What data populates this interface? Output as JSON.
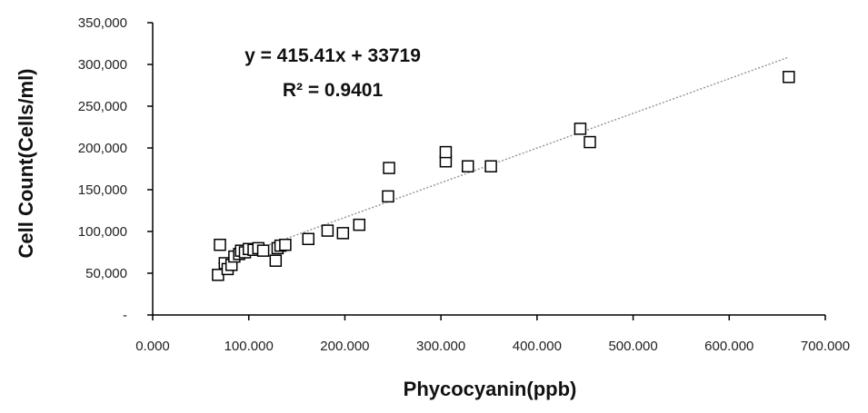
{
  "chart_data": {
    "type": "scatter",
    "title": "",
    "xlabel": "Phycocyanin(ppb)",
    "ylabel": "Cell Count(Cells/ml)",
    "xlim": [
      0,
      700
    ],
    "ylim": [
      0,
      350000
    ],
    "x_ticks": [
      0,
      100,
      200,
      300,
      400,
      500,
      600,
      700
    ],
    "x_tick_labels": [
      "0.000",
      "100.000",
      "200.000",
      "300.000",
      "400.000",
      "500.000",
      "600.000",
      "700.000"
    ],
    "y_ticks": [
      0,
      50000,
      100000,
      150000,
      200000,
      250000,
      300000,
      350000
    ],
    "y_tick_labels": [
      "-",
      "50,000",
      "100,000",
      "150,000",
      "200,000",
      "250,000",
      "300,000",
      "350,000"
    ],
    "grid": false,
    "legend": null,
    "series": [
      {
        "name": "Cell Count",
        "marker": "open-square",
        "points": [
          [
            68,
            48000
          ],
          [
            70,
            84000
          ],
          [
            75,
            62000
          ],
          [
            78,
            55000
          ],
          [
            82,
            60000
          ],
          [
            85,
            70000
          ],
          [
            90,
            73000
          ],
          [
            92,
            77000
          ],
          [
            96,
            75000
          ],
          [
            100,
            79000
          ],
          [
            105,
            78000
          ],
          [
            110,
            80000
          ],
          [
            115,
            77000
          ],
          [
            128,
            65000
          ],
          [
            130,
            80000
          ],
          [
            133,
            83000
          ],
          [
            138,
            84000
          ],
          [
            162,
            91000
          ],
          [
            182,
            101000
          ],
          [
            198,
            98000
          ],
          [
            215,
            108000
          ],
          [
            245,
            142000
          ],
          [
            246,
            176000
          ],
          [
            305,
            184000
          ],
          [
            305,
            195000
          ],
          [
            328,
            178000
          ],
          [
            352,
            178000
          ],
          [
            445,
            223000
          ],
          [
            455,
            207000
          ],
          [
            662,
            285000
          ]
        ]
      }
    ],
    "trendline": {
      "type": "linear",
      "slope": 415.41,
      "intercept": 33719,
      "x_range": [
        68,
        662
      ],
      "equation_label": "y = 415.41x + 33719",
      "r2_label": "R² = 0.9401"
    },
    "colors": {
      "marker": "#000000",
      "trendline": "#999999",
      "axis": "#000000"
    }
  }
}
